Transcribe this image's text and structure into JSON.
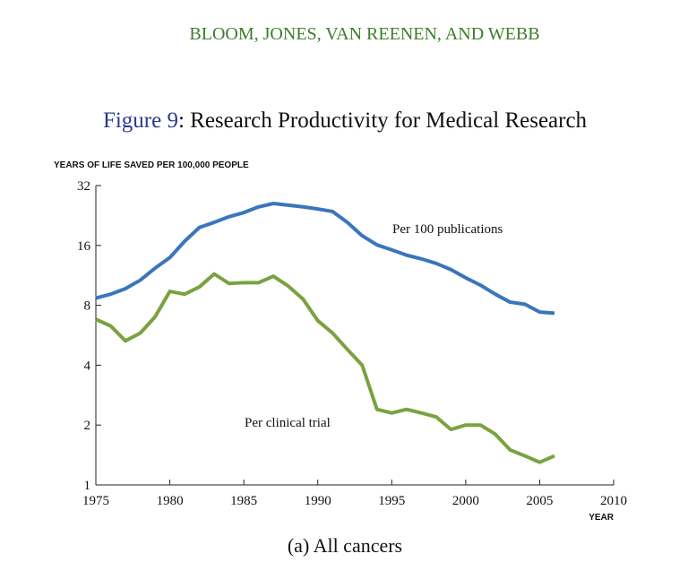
{
  "header": "BLOOM, JONES, VAN REENEN, AND WEBB",
  "figure_number": "Figure 9",
  "figure_title": ": Research Productivity for Medical Research",
  "caption": "(a) All cancers",
  "chart_data": {
    "type": "line",
    "y_label": "YEARS OF LIFE SAVED PER 100,000 PEOPLE",
    "x_label": "YEAR",
    "y_log": true,
    "x": [
      1975,
      1976,
      1977,
      1978,
      1979,
      1980,
      1981,
      1982,
      1983,
      1984,
      1985,
      1986,
      1987,
      1988,
      1989,
      1990,
      1991,
      1992,
      1993,
      1994,
      1995,
      1996,
      1997,
      1998,
      1999,
      2000,
      2001,
      2002,
      2003,
      2004,
      2005,
      2006
    ],
    "series": [
      {
        "name": "Per 100 publications",
        "color": "#3a75bd",
        "values": [
          8.7,
          9.1,
          9.7,
          10.7,
          12.3,
          13.9,
          16.8,
          19.7,
          20.9,
          22.3,
          23.4,
          25.0,
          26.0,
          25.5,
          25.0,
          24.4,
          23.7,
          20.9,
          17.9,
          16.1,
          15.2,
          14.3,
          13.7,
          13.0,
          12.1,
          11.0,
          10.1,
          9.1,
          8.3,
          8.1,
          7.4,
          7.3
        ]
      },
      {
        "name": "Per clinical trial",
        "color": "#7aa23f",
        "values": [
          6.8,
          6.3,
          5.3,
          5.8,
          7.0,
          9.4,
          9.1,
          9.9,
          11.5,
          10.3,
          10.4,
          10.4,
          11.2,
          10.0,
          8.6,
          6.7,
          5.8,
          4.8,
          4.0,
          2.4,
          2.3,
          2.4,
          2.3,
          2.2,
          1.9,
          2.0,
          2.0,
          1.8,
          1.5,
          1.4,
          1.3,
          1.4
        ]
      }
    ],
    "xlim": [
      1975,
      2010
    ],
    "xticks": [
      1975,
      1980,
      1985,
      1990,
      1995,
      2000,
      2005,
      2010
    ],
    "ylim": [
      1,
      32
    ],
    "yticks": [
      1,
      2,
      4,
      8,
      16,
      32
    ]
  }
}
